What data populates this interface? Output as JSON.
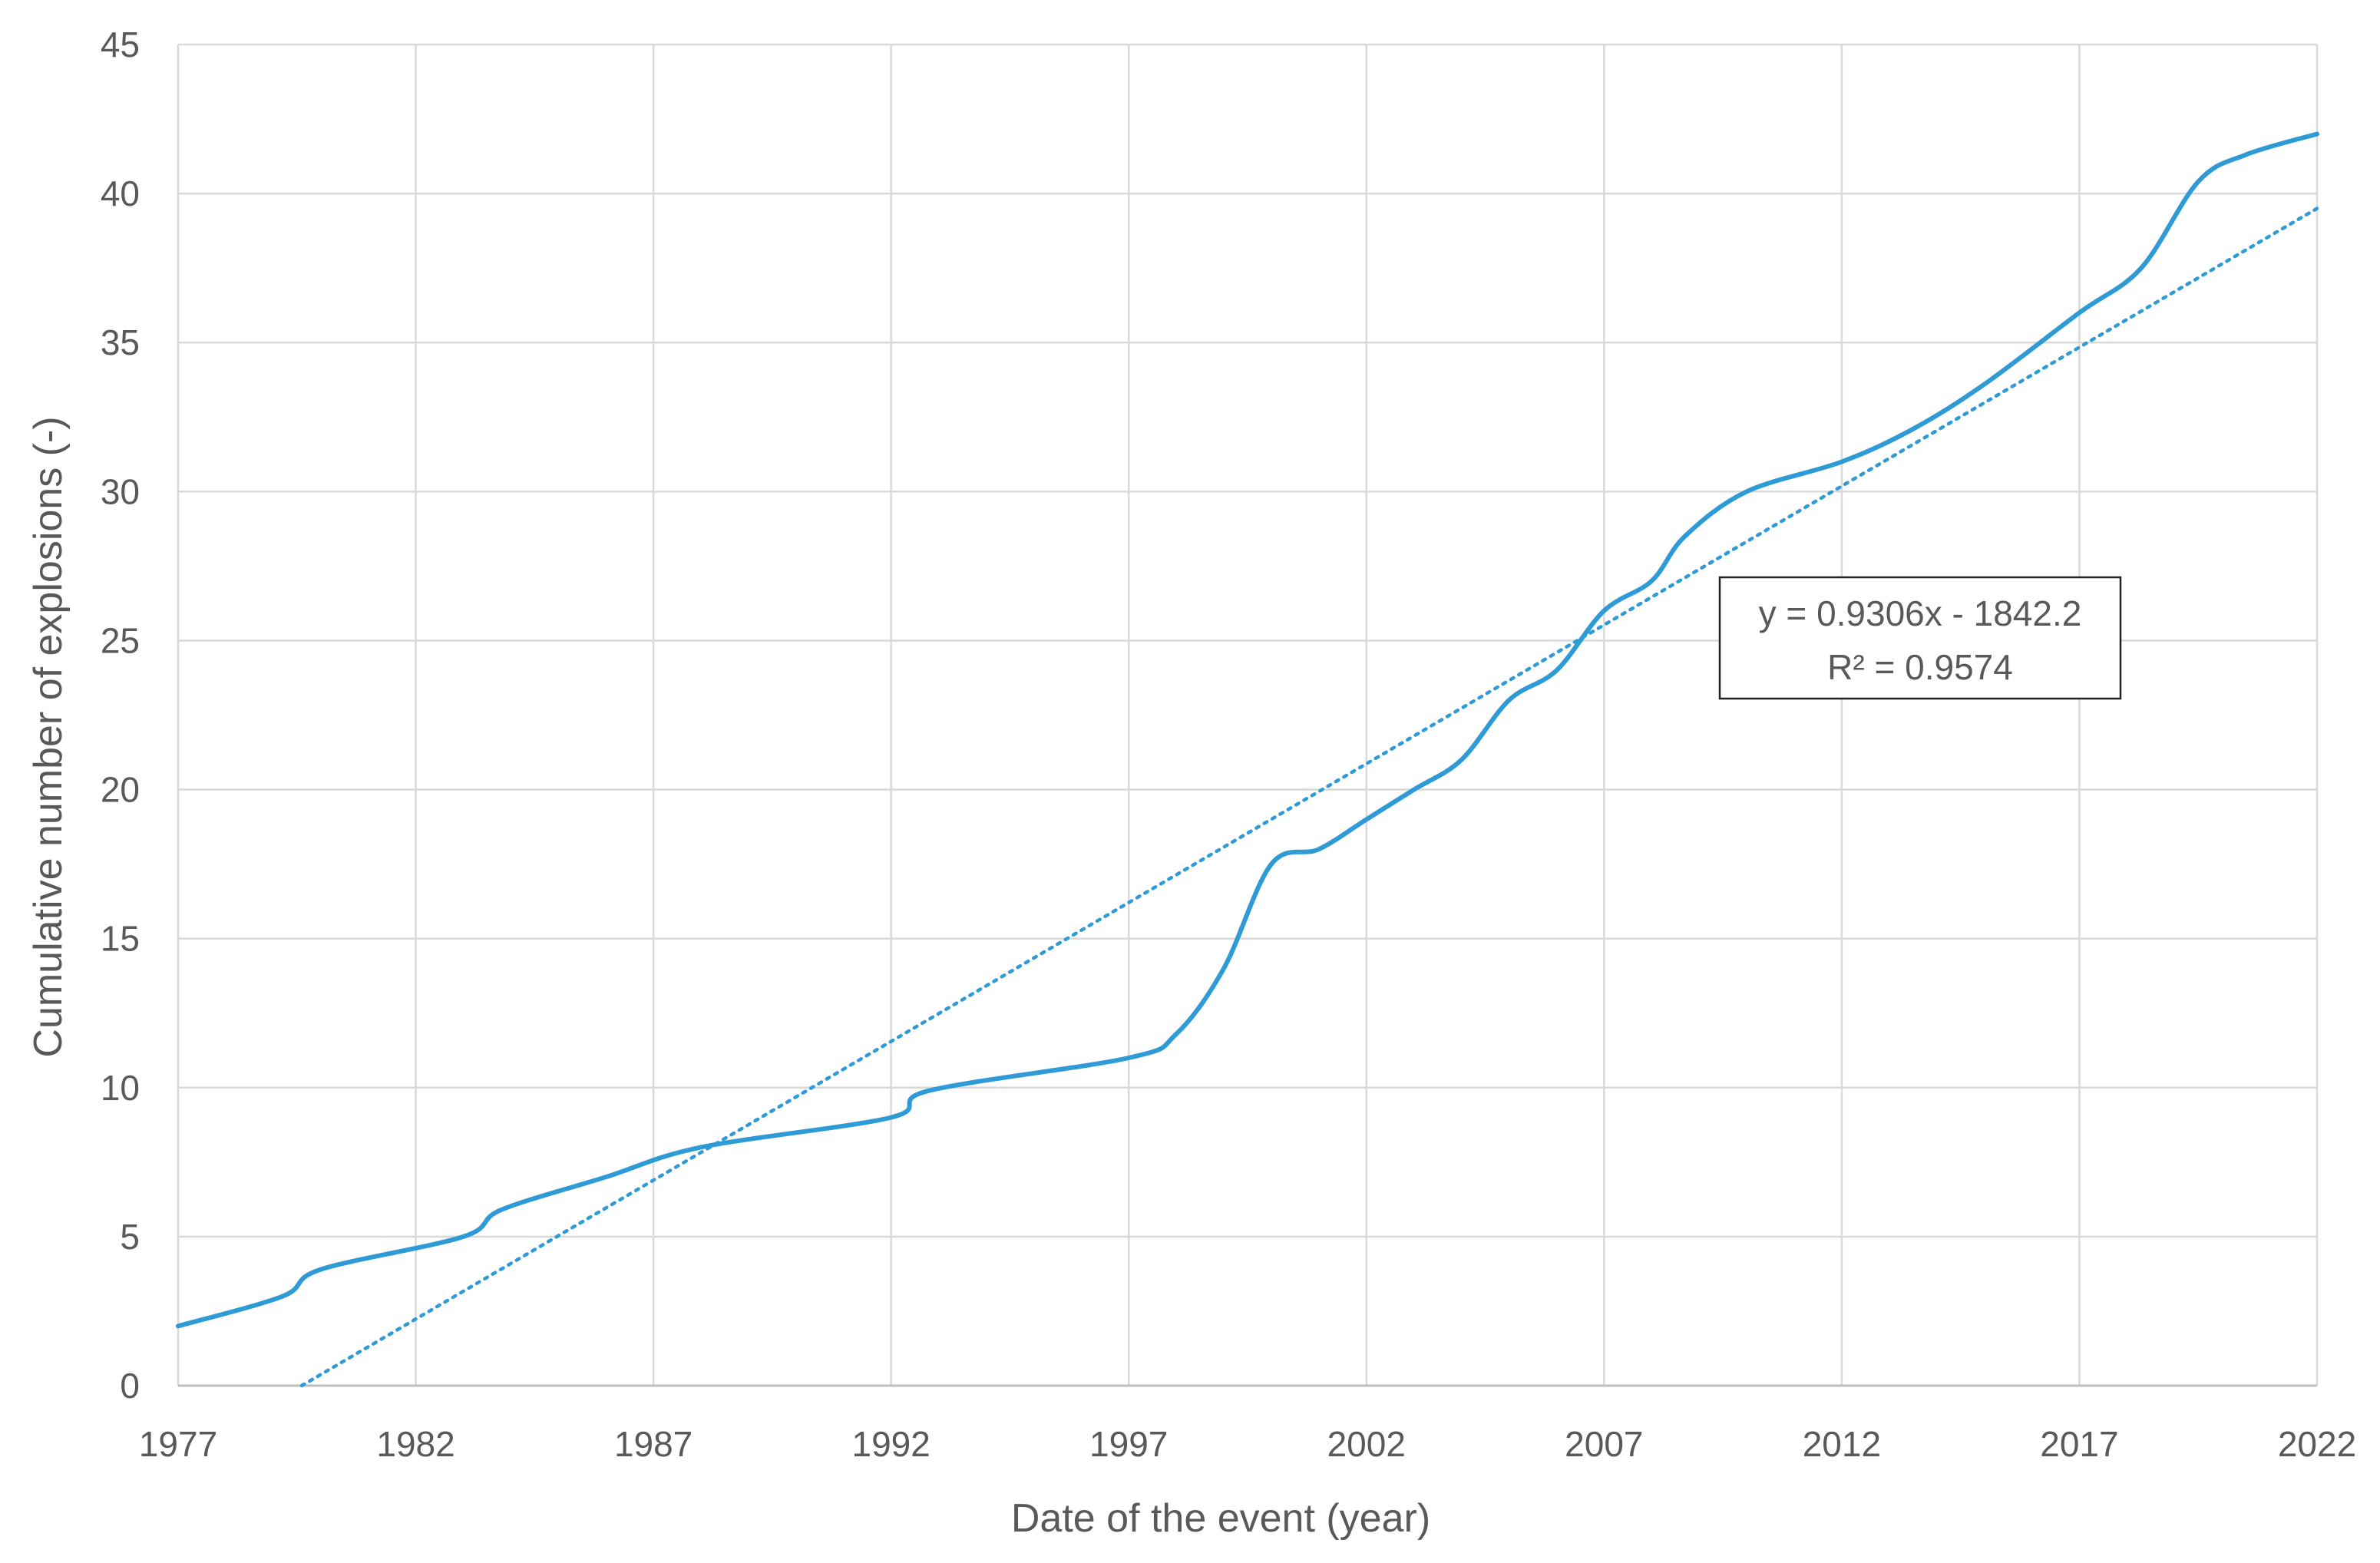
{
  "chart_data": {
    "type": "line",
    "title": "",
    "xlabel": "Date of the event (year)",
    "ylabel": "Cumulative number of explosions (-)",
    "xlim": [
      1977,
      2022
    ],
    "ylim": [
      0,
      45
    ],
    "x_ticks": [
      "1977",
      "1982",
      "1987",
      "1992",
      "1997",
      "2002",
      "2007",
      "2012",
      "2017",
      "2022"
    ],
    "y_ticks": [
      "0",
      "5",
      "10",
      "15",
      "20",
      "25",
      "30",
      "35",
      "40",
      "45"
    ],
    "grid": true,
    "series": [
      {
        "color": "#2E9BD6",
        "style": "solid-smoothed",
        "x": [
          1977,
          1979.2,
          1980,
          1983,
          1983.8,
          1986,
          1988,
          1992,
          1992.8,
          1997,
          1998,
          1999,
          2000,
          2001,
          2002,
          2003,
          2004,
          2005,
          2006,
          2007,
          2008,
          2008.7,
          2010,
          2012,
          2013.5,
          2015,
          2017,
          2018.3,
          2019.5,
          2020.5,
          2022
        ],
        "y": [
          2,
          3,
          3.9,
          5,
          5.9,
          7,
          8,
          9,
          9.9,
          11,
          11.8,
          14,
          17.5,
          18,
          19,
          20,
          21,
          23,
          24,
          26,
          27,
          28.5,
          30,
          31,
          32.1,
          33.6,
          36,
          37.5,
          40.4,
          41.3,
          42
        ]
      },
      {
        "color": "#2E9BD6",
        "style": "dotted",
        "kind": "linear trendline",
        "x": [
          1979.6,
          2022
        ],
        "y": [
          0,
          39.5
        ]
      }
    ],
    "annotations": [
      {
        "line1": "y = 0.9306x - 1842.2",
        "line2": "R² = 0.9574"
      }
    ]
  }
}
